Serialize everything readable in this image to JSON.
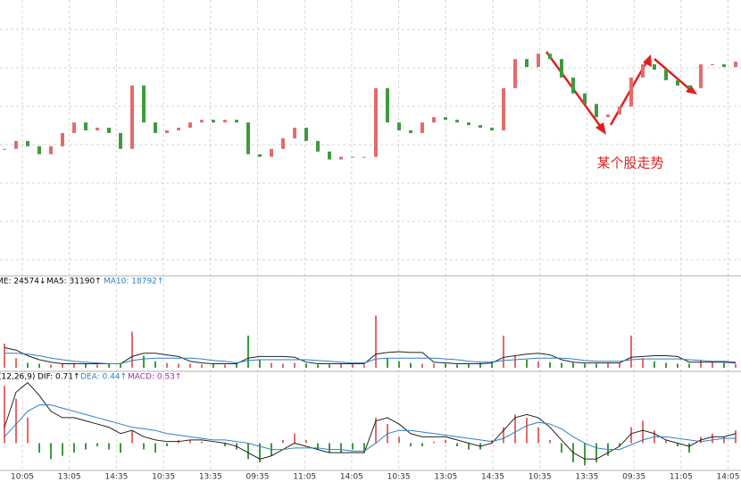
{
  "chart_data": [
    {
      "type": "candlestick",
      "ylim": [
        0,
        100
      ],
      "grid": true,
      "up_color": "#e46b6b",
      "down_color": "#3f9a3f",
      "annotation": "某个股走势",
      "values": [
        45,
        48,
        46,
        43,
        46,
        51,
        55,
        52,
        53,
        51,
        45,
        69,
        55,
        51,
        52,
        53,
        55,
        56,
        55,
        56,
        55,
        43,
        42,
        45,
        49,
        53,
        48,
        44,
        41,
        42,
        42,
        42,
        68,
        55,
        52,
        51,
        55,
        57,
        56,
        55,
        54,
        53,
        52,
        68,
        79,
        76,
        81,
        79,
        72,
        66,
        62,
        57,
        58,
        61,
        72,
        77,
        75,
        71,
        69,
        68,
        77,
        77,
        76,
        78
      ]
    },
    {
      "type": "volume",
      "ylim": [
        0,
        100
      ],
      "indicator": "ME: 24574↓",
      "values": [
        30,
        12,
        6,
        5,
        4,
        5,
        6,
        5,
        4,
        5,
        6,
        45,
        15,
        8,
        6,
        5,
        5,
        4,
        5,
        4,
        5,
        40,
        10,
        6,
        5,
        6,
        5,
        4,
        4,
        5,
        5,
        4,
        65,
        12,
        8,
        6,
        5,
        5,
        5,
        4,
        5,
        6,
        8,
        40,
        15,
        10,
        8,
        7,
        6,
        6,
        5,
        5,
        6,
        6,
        40,
        12,
        8,
        6,
        5,
        5,
        10,
        8,
        6,
        5
      ],
      "series": [
        {
          "name": "MA5: 31190↑",
          "color": "#222222",
          "values": [
            25,
            22,
            15,
            10,
            7,
            5,
            5,
            5,
            5,
            5,
            5,
            14,
            18,
            18,
            16,
            14,
            8,
            6,
            5,
            5,
            5,
            12,
            14,
            14,
            14,
            13,
            7,
            5,
            5,
            5,
            5,
            5,
            17,
            19,
            20,
            19,
            19,
            7,
            6,
            5,
            5,
            5,
            6,
            13,
            15,
            17,
            18,
            16,
            10,
            7,
            6,
            6,
            6,
            6,
            13,
            14,
            15,
            15,
            14,
            7,
            7,
            7,
            7,
            6
          ]
        },
        {
          "name": "MA10: 18792↑",
          "color": "#2f7fc8",
          "values": [
            18,
            18,
            17,
            15,
            12,
            10,
            8,
            7,
            6,
            5,
            5,
            9,
            11,
            12,
            12,
            12,
            12,
            11,
            9,
            8,
            6,
            9,
            10,
            10,
            10,
            10,
            10,
            9,
            8,
            7,
            6,
            6,
            11,
            12,
            12,
            12,
            12,
            12,
            11,
            10,
            8,
            7,
            7,
            9,
            10,
            11,
            12,
            12,
            12,
            11,
            9,
            8,
            8,
            8,
            10,
            11,
            11,
            11,
            11,
            10,
            9,
            8,
            8,
            7
          ]
        }
      ]
    },
    {
      "type": "macd",
      "ylim": [
        -0.8,
        2.2
      ],
      "label": "(12,26,9)",
      "value_name": "MACD: 0.53↑",
      "value_color": "#a0309a",
      "values": [
        1.8,
        1.4,
        0.8,
        -0.3,
        -0.5,
        -0.4,
        -0.3,
        -0.2,
        -0.1,
        -0.2,
        -0.3,
        0.4,
        -0.2,
        -0.3,
        -0.1,
        0.1,
        0.1,
        0.05,
        0,
        -0.1,
        -0.2,
        -0.5,
        -0.6,
        -0.4,
        0.1,
        0.3,
        0.1,
        -0.2,
        -0.3,
        -0.3,
        -0.2,
        -0.3,
        0.8,
        0.6,
        0.2,
        -0.1,
        -0.1,
        0.05,
        0.1,
        -0.1,
        -0.2,
        -0.2,
        0.1,
        0.5,
        0.9,
        0.8,
        0.5,
        0.1,
        -0.3,
        -0.6,
        -0.7,
        -0.6,
        -0.4,
        -0.1,
        0.5,
        0.7,
        0.4,
        0.1,
        -0.1,
        -0.3,
        0.2,
        0.3,
        0.2,
        0.4
      ],
      "series": [
        {
          "name": "DIF: 0.71↑",
          "color": "#222222",
          "values": [
            0.5,
            1.6,
            1.9,
            1.5,
            1.0,
            0.8,
            0.8,
            0.7,
            0.6,
            0.5,
            0.3,
            0.4,
            0.2,
            0.1,
            0.05,
            0.05,
            0.1,
            0.1,
            0.05,
            0,
            -0.1,
            -0.3,
            -0.5,
            -0.4,
            -0.2,
            0,
            -0.1,
            -0.2,
            -0.3,
            -0.3,
            -0.3,
            -0.3,
            0.7,
            0.8,
            0.6,
            0.3,
            0.2,
            0.2,
            0.2,
            0.1,
            0,
            -0.1,
            0,
            0.4,
            0.8,
            0.9,
            0.8,
            0.5,
            0.1,
            -0.3,
            -0.5,
            -0.5,
            -0.3,
            -0.1,
            0.3,
            0.4,
            0.3,
            0.1,
            0,
            -0.1,
            0.1,
            0.2,
            0.2,
            0.3
          ]
        },
        {
          "name": "DEA: 0.44↑",
          "color": "#2f7fc8",
          "values": [
            0.2,
            0.6,
            1.0,
            1.2,
            1.2,
            1.1,
            1.0,
            0.9,
            0.8,
            0.7,
            0.6,
            0.5,
            0.45,
            0.4,
            0.3,
            0.25,
            0.2,
            0.15,
            0.1,
            0.1,
            0.05,
            0,
            -0.1,
            -0.2,
            -0.2,
            -0.15,
            -0.15,
            -0.15,
            -0.2,
            -0.2,
            -0.25,
            -0.25,
            0,
            0.3,
            0.4,
            0.4,
            0.35,
            0.3,
            0.25,
            0.2,
            0.15,
            0.1,
            0.05,
            0.15,
            0.35,
            0.55,
            0.65,
            0.6,
            0.45,
            0.2,
            0,
            -0.15,
            -0.2,
            -0.2,
            -0.05,
            0.1,
            0.2,
            0.2,
            0.15,
            0.1,
            0.05,
            0.1,
            0.15,
            0.15
          ]
        }
      ]
    }
  ],
  "time_axis": [
    "10:05",
    "13:05",
    "14:35",
    "10:35",
    "13:35",
    "09:35",
    "11:05",
    "14:05",
    "10:35",
    "13:05",
    "14:35",
    "10:35",
    "13:35",
    "09:35",
    "11:05",
    "14:05"
  ]
}
